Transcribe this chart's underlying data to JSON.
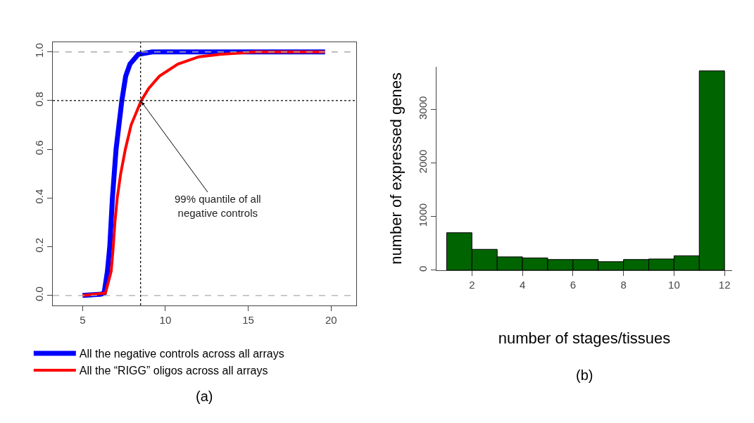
{
  "chart_data": [
    {
      "type": "line",
      "xlim": [
        3.2,
        21.5
      ],
      "ylim": [
        -0.04,
        1.04
      ],
      "xticks": [
        5,
        10,
        15,
        20
      ],
      "yticks": [
        {
          "value": 0,
          "label": "0.0"
        },
        0.2,
        0.4,
        0.6,
        0.8,
        {
          "value": 1,
          "label": "1.0"
        }
      ],
      "legend": "bottom",
      "series": [
        {
          "name": "All the negative controls across all arrays",
          "color": "#0000ff",
          "x": [
            5.0,
            6.1,
            6.3,
            6.5,
            6.64,
            6.8,
            7.02,
            7.37,
            7.6,
            7.86,
            8.36,
            9.2,
            19.64
          ],
          "values": [
            0,
            0.005,
            0.01,
            0.1,
            0.2,
            0.4,
            0.6,
            0.8,
            0.9,
            0.95,
            0.99,
            1.0,
            1.0
          ]
        },
        {
          "name": "All the “RIGG” oligos across all arrays",
          "color": "#ff0000",
          "x": [
            5.0,
            6.38,
            6.73,
            6.85,
            6.95,
            7.09,
            7.3,
            7.58,
            7.93,
            8.54,
            8.99,
            9.63,
            10.75,
            12.02,
            13.3,
            15.4,
            19.64
          ],
          "values": [
            0,
            0.01,
            0.1,
            0.2,
            0.3,
            0.4,
            0.5,
            0.6,
            0.7,
            0.8,
            0.85,
            0.9,
            0.95,
            0.98,
            0.99,
            1.0,
            1.0
          ]
        }
      ],
      "ref_lines": [
        {
          "axis": "x",
          "value": 8.5,
          "color": "#000000",
          "line_style": "dotted"
        },
        {
          "axis": "y",
          "value": 0.8,
          "color": "#000000",
          "line_style": "dotted"
        },
        {
          "axis": "y",
          "value": 0,
          "color": "#aaaaaa",
          "line_style": "dashed"
        },
        {
          "axis": "y",
          "value": 1,
          "color": "#aaaaaa",
          "line_style": "dashed"
        }
      ],
      "annotations": [
        {
          "text": "99% quantile of all negative controls",
          "x": 8.5,
          "y": 0.8
        },
        "(a)"
      ]
    },
    {
      "type": "histogram",
      "xlabel": "number of stages/tissues",
      "ylabel": "number of expressed genes",
      "bins": [
        1,
        2,
        3,
        4,
        5,
        6,
        7,
        8,
        9,
        10,
        11,
        12
      ],
      "values": [
        700,
        390,
        250,
        230,
        200,
        200,
        160,
        200,
        210,
        270,
        3720
      ],
      "color": "#006400",
      "xlim": [
        0.6,
        12.3
      ],
      "ylim": [
        0,
        3800
      ],
      "xticks": [
        2,
        4,
        6,
        8,
        10,
        12
      ],
      "yticks": [
        0,
        1000,
        2000,
        3000
      ],
      "annotations": [
        "(b)"
      ]
    }
  ]
}
